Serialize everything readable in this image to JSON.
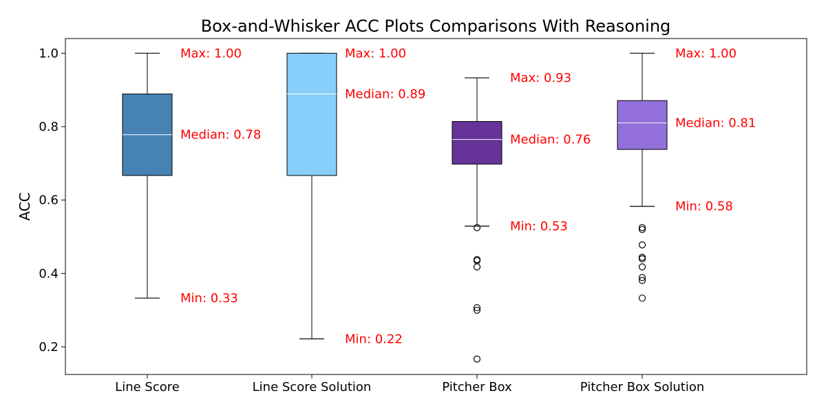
{
  "chart_data": {
    "type": "box",
    "title": "Box-and-Whisker ACC Plots Comparisons With Reasoning",
    "xlabel": "",
    "ylabel": "ACC",
    "ylim": [
      0.125,
      1.04
    ],
    "yticks": [
      "0.2",
      "0.4",
      "0.6",
      "0.8",
      "1.0"
    ],
    "grid": false,
    "annotation_color": "#ff0000",
    "median_color": "#ffffff",
    "series": [
      {
        "category": "Line Score",
        "color": "#4682b4",
        "whisker_low": 0.333,
        "q1": 0.667,
        "median": 0.778,
        "q3": 0.889,
        "whisker_high": 1.0,
        "outliers": [],
        "max_label": "Max: 1.00",
        "median_label": "Median: 0.78",
        "min_label": "Min: 0.33"
      },
      {
        "category": "Line Score Solution",
        "color": "#87cefa",
        "whisker_low": 0.222,
        "q1": 0.667,
        "median": 0.889,
        "q3": 1.0,
        "whisker_high": 1.0,
        "outliers": [],
        "max_label": "Max: 1.00",
        "median_label": "Median: 0.89",
        "min_label": "Min: 0.22"
      },
      {
        "category": "Pitcher Box",
        "color": "#663399",
        "whisker_low": 0.529,
        "q1": 0.698,
        "median": 0.765,
        "q3": 0.814,
        "whisker_high": 0.933,
        "outliers": [
          0.525,
          0.438,
          0.435,
          0.418,
          0.307,
          0.3,
          0.167
        ],
        "max_label": "Max: 0.93",
        "median_label": "Median: 0.76",
        "min_label": "Min: 0.53"
      },
      {
        "category": "Pitcher Box Solution",
        "color": "#9370db",
        "whisker_low": 0.583,
        "q1": 0.738,
        "median": 0.81,
        "q3": 0.871,
        "whisker_high": 1.0,
        "outliers": [
          0.525,
          0.52,
          0.478,
          0.444,
          0.44,
          0.418,
          0.389,
          0.381,
          0.333
        ],
        "max_label": "Max: 1.00",
        "median_label": "Median: 0.81",
        "min_label": "Min: 0.58"
      }
    ]
  }
}
